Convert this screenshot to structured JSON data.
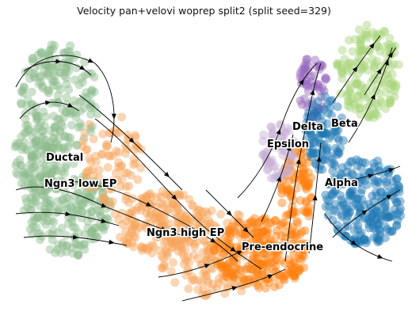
{
  "chart_data": {
    "type": "scatter",
    "title": "Velocity pan+velovi woprep split2 (split seed=329)",
    "xlabel": "",
    "ylabel": "",
    "grid": false,
    "legend": "none",
    "clusters": [
      {
        "name": "Ductal",
        "color": "#8fbc8f"
      },
      {
        "name": "Ngn3 low EP",
        "color": "#8fbc8f"
      },
      {
        "name": "Ngn3 high EP",
        "color": "#f6a35c"
      },
      {
        "name": "Pre-endocrine",
        "color": "#ff7f0e"
      },
      {
        "name": "Epsilon",
        "color": "#c5b0d5"
      },
      {
        "name": "Delta",
        "color": "#9467bd"
      },
      {
        "name": "Beta",
        "color": "#a8d47a"
      },
      {
        "name": "Alpha",
        "color": "#1f77b4"
      }
    ],
    "streamlines": "velocity flow arrows"
  }
}
